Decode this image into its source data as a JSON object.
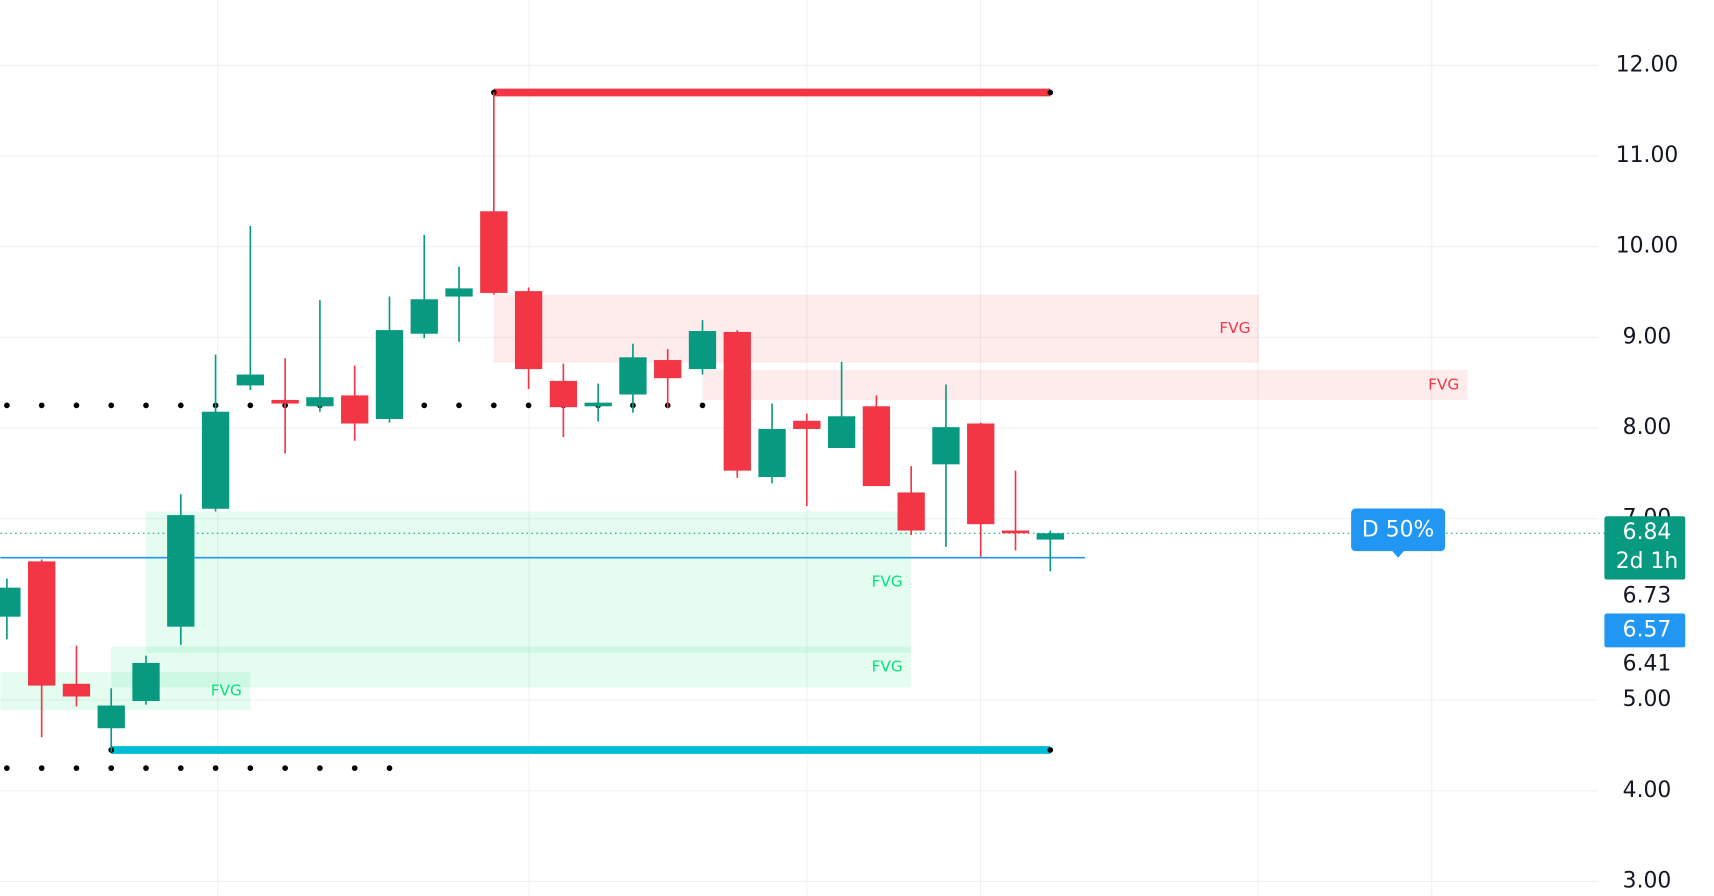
{
  "chart_data": {
    "type": "candlestick",
    "ylim": [
      2.84,
      12.72
    ],
    "yticks": [
      {
        "value": 3,
        "label": "3.00"
      },
      {
        "value": 4,
        "label": "4.00"
      },
      {
        "value": 5,
        "label": "5.00"
      },
      {
        "value": 7,
        "label": "7.00"
      },
      {
        "value": 8,
        "label": "8.00"
      },
      {
        "value": 9,
        "label": "9.00"
      },
      {
        "value": 10,
        "label": "10.00"
      },
      {
        "value": 11,
        "label": "11.00"
      },
      {
        "value": 12,
        "label": "12.00"
      }
    ],
    "grid": true,
    "up_color": "#089981",
    "down_color": "#f23645",
    "open": [
      5.92,
      6.53,
      5.18,
      4.69,
      4.99,
      5.81,
      7.11,
      8.47,
      8.31,
      8.24,
      8.36,
      8.1,
      9.04,
      9.45,
      10.39,
      9.51,
      8.52,
      8.24,
      8.37,
      8.75,
      8.65,
      9.06,
      7.46,
      8.08,
      7.78,
      8.24,
      7.29,
      7.6,
      8.05,
      6.87,
      6.77
    ],
    "high": [
      6.34,
      6.55,
      5.6,
      5.13,
      5.49,
      7.27,
      8.81,
      10.23,
      8.77,
      9.41,
      8.69,
      9.45,
      10.13,
      9.78,
      11.7,
      9.55,
      8.71,
      8.49,
      8.93,
      8.87,
      9.19,
      9.08,
      8.27,
      8.16,
      8.73,
      8.36,
      7.58,
      8.48,
      8.06,
      7.53,
      6.87
    ],
    "low": [
      5.67,
      4.59,
      4.93,
      4.43,
      4.95,
      5.61,
      7.08,
      8.42,
      7.72,
      8.18,
      7.86,
      8.06,
      8.99,
      8.95,
      9.47,
      8.43,
      7.9,
      8.07,
      8.17,
      8.22,
      8.59,
      7.45,
      7.39,
      7.14,
      7.78,
      7.36,
      6.82,
      6.69,
      6.58,
      6.65,
      6.42
    ],
    "close": [
      6.24,
      5.16,
      5.04,
      4.94,
      5.41,
      7.04,
      8.18,
      8.59,
      8.27,
      8.34,
      8.05,
      9.08,
      9.42,
      9.54,
      9.49,
      8.65,
      8.23,
      8.28,
      8.78,
      8.55,
      9.07,
      7.53,
      7.99,
      7.99,
      8.13,
      7.36,
      6.87,
      8.01,
      6.94,
      6.84,
      6.84
    ],
    "zones": [
      {
        "label": "FVG",
        "top": 9.47,
        "bottom": 8.72,
        "from": 14,
        "to": 36,
        "color": "#f23645"
      },
      {
        "label": "FVG",
        "top": 8.64,
        "bottom": 8.31,
        "from": 20,
        "to": 42,
        "color": "#f23645"
      },
      {
        "label": "FVG",
        "top": 7.08,
        "bottom": 5.52,
        "from": 4,
        "to": 26,
        "color": "#00e676"
      },
      {
        "label": "FVG",
        "top": 5.59,
        "bottom": 5.14,
        "from": 3,
        "to": 26,
        "color": "#00e676"
      },
      {
        "label": "FVG",
        "top": 5.31,
        "bottom": 4.89,
        "from": -1,
        "to": 7,
        "color": "#00e676"
      }
    ],
    "levels": [
      {
        "value": 11.7,
        "from": 14,
        "to": 30,
        "color": "#f23645",
        "style": "solid"
      },
      {
        "value": 4.45,
        "from": 3,
        "to": 30,
        "color": "#00bcd4",
        "style": "solid"
      },
      {
        "value": 8.25,
        "from": 0,
        "to": 20,
        "color": "#000000",
        "style": "dots"
      },
      {
        "value": 4.25,
        "from": 0,
        "to": 11,
        "color": "#000000",
        "style": "dots"
      },
      {
        "value": 6.57,
        "from": -1,
        "to": 31,
        "color": "#2196f3",
        "style": "thin"
      }
    ],
    "price_labels": [
      {
        "value": 6.84,
        "sub": "2d 1h",
        "color": "#089981"
      },
      {
        "value": 6.73
      },
      {
        "value": 6.57,
        "color": "#2196f3"
      },
      {
        "value": 6.41
      }
    ],
    "annotation": {
      "text": "D 50%",
      "bar": 40,
      "value": 6.57,
      "color": "#2196f3"
    }
  }
}
